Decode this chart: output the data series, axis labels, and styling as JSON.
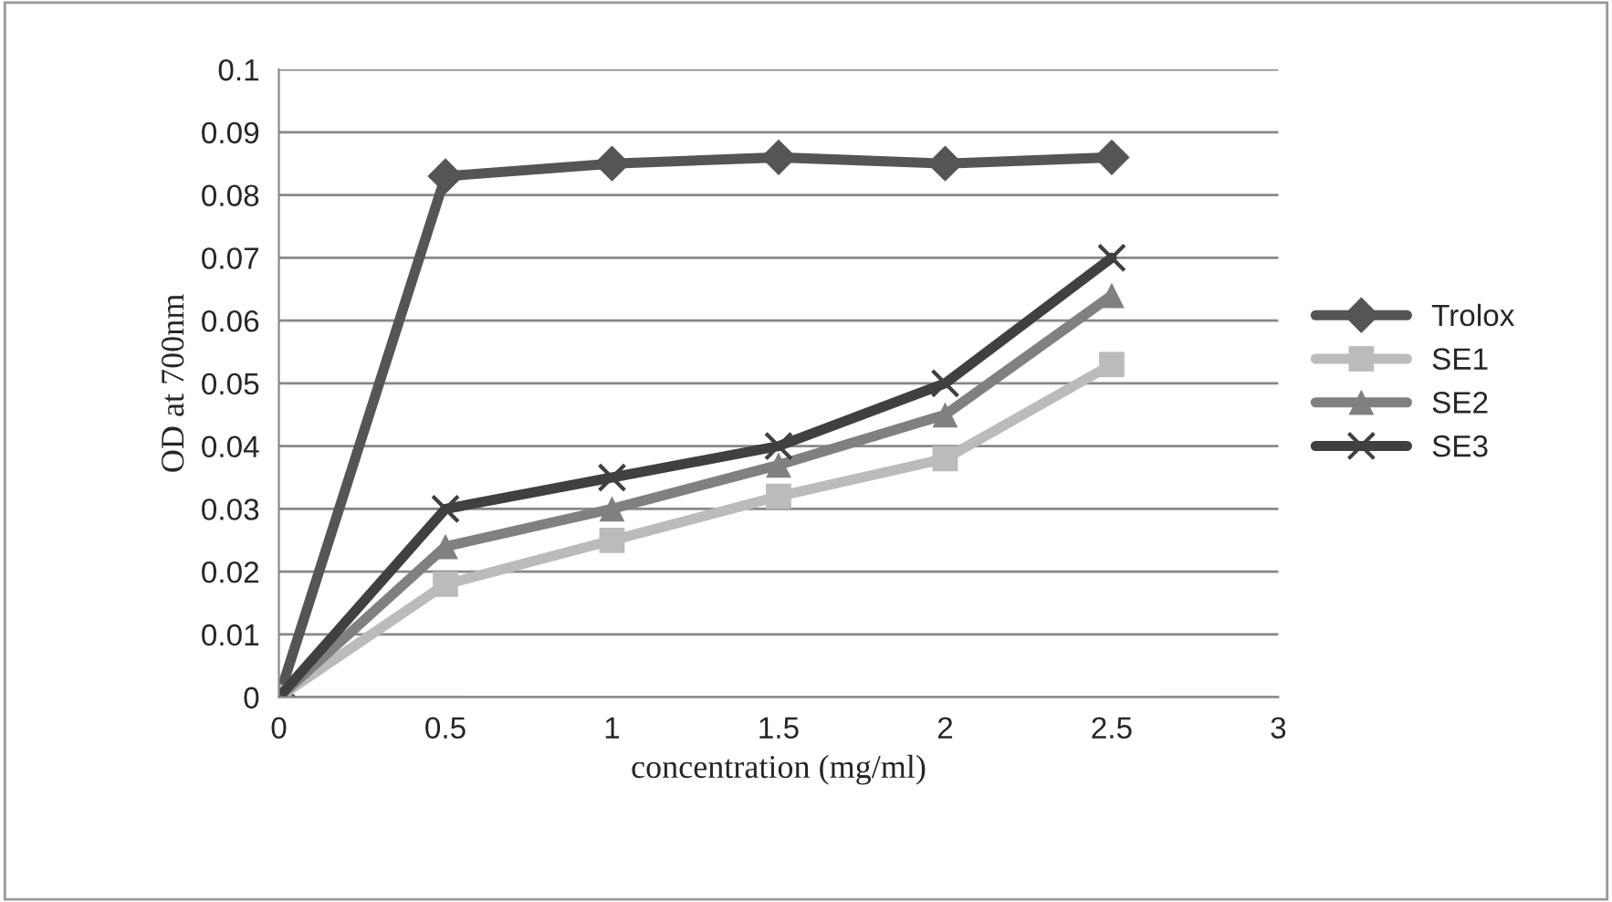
{
  "chart_data": {
    "type": "line",
    "xlabel": "concentration (mg/ml)",
    "ylabel": "OD at 700nm",
    "x": [
      0,
      0.5,
      1,
      1.5,
      2,
      2.5
    ],
    "series": [
      {
        "name": "Trolox",
        "color": "#555555",
        "marker": "diamond",
        "values": [
          0,
          0.083,
          0.085,
          0.086,
          0.085,
          0.086
        ]
      },
      {
        "name": "SE1",
        "color": "#bbbbbb",
        "marker": "square",
        "values": [
          0,
          0.018,
          0.025,
          0.032,
          0.038,
          0.053
        ]
      },
      {
        "name": "SE2",
        "color": "#808080",
        "marker": "triangle",
        "values": [
          0,
          0.024,
          0.03,
          0.037,
          0.045,
          0.064
        ]
      },
      {
        "name": "SE3",
        "color": "#404040",
        "marker": "cross",
        "values": [
          0,
          0.03,
          0.035,
          0.04,
          0.05,
          0.07
        ]
      }
    ],
    "xlim": [
      0,
      3
    ],
    "xticks": [
      0,
      0.5,
      1,
      1.5,
      2,
      2.5,
      3
    ],
    "ylim": [
      0,
      0.1
    ],
    "yticks": [
      0,
      0.01,
      0.02,
      0.03,
      0.04,
      0.05,
      0.06,
      0.07,
      0.08,
      0.09,
      0.1
    ],
    "grid": "y",
    "legend": "right",
    "line_style": "solid"
  }
}
